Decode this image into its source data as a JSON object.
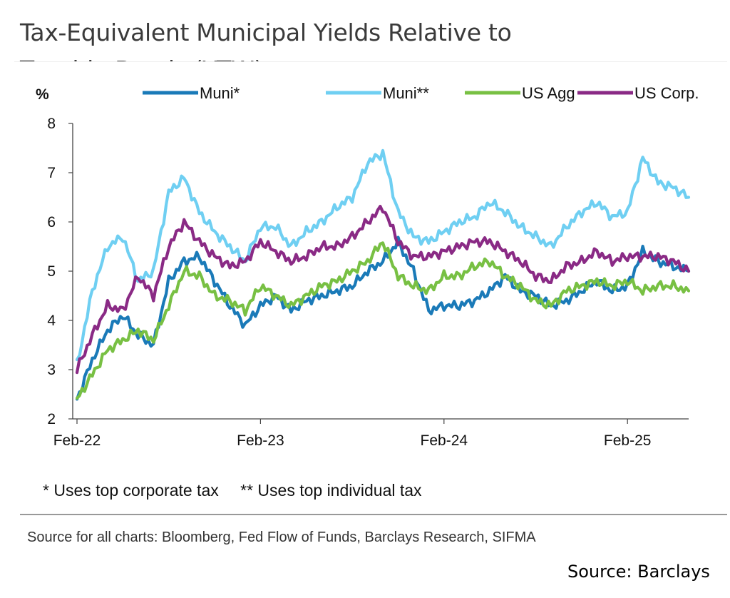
{
  "title": "Tax-Equivalent Municipal Yields Relative to Taxable Bonds (YTW)",
  "notes": [
    "* Uses top corporate tax",
    "** Uses top individual tax"
  ],
  "source_line": "Source for all charts: Bloomberg, Fed Flow of Funds, Barclays Research, SIFMA",
  "source_credit": "Source: Barclays",
  "chart_data": {
    "type": "line",
    "ylabel": "%",
    "ylim": [
      2,
      8
    ],
    "yticks": [
      "2",
      "3",
      "4",
      "5",
      "6",
      "7",
      "8"
    ],
    "xticks": [
      "Feb-22",
      "Feb-23",
      "Feb-24",
      "Feb-25"
    ],
    "x": [
      "Feb-22",
      "Mar-22",
      "Apr-22",
      "May-22",
      "Jun-22",
      "Jul-22",
      "Aug-22",
      "Sep-22",
      "Oct-22",
      "Nov-22",
      "Dec-22",
      "Jan-23",
      "Feb-23",
      "Mar-23",
      "Apr-23",
      "May-23",
      "Jun-23",
      "Jul-23",
      "Aug-23",
      "Sep-23",
      "Oct-23",
      "Nov-23",
      "Dec-23",
      "Jan-24",
      "Feb-24",
      "Mar-24",
      "Apr-24",
      "May-24",
      "Jun-24",
      "Jul-24",
      "Aug-24",
      "Sep-24",
      "Oct-24",
      "Nov-24",
      "Dec-24",
      "Jan-25",
      "Feb-25",
      "Mar-25",
      "Apr-25",
      "May-25",
      "Jun-25"
    ],
    "legend_position": "top",
    "grid": false,
    "series": [
      {
        "name": "Muni*",
        "color": "#1a7ab8",
        "values": [
          2.4,
          3.2,
          3.8,
          4.1,
          3.7,
          3.5,
          4.8,
          5.2,
          5.3,
          4.8,
          4.3,
          3.9,
          4.3,
          4.5,
          4.2,
          4.4,
          4.5,
          4.6,
          4.7,
          5.0,
          5.2,
          5.6,
          5.0,
          4.2,
          4.3,
          4.3,
          4.4,
          4.6,
          4.9,
          4.6,
          4.5,
          4.3,
          4.4,
          4.6,
          4.8,
          4.6,
          4.7,
          5.4,
          5.2,
          5.1,
          5.0
        ]
      },
      {
        "name": "Muni**",
        "color": "#6fcff2",
        "values": [
          3.1,
          4.6,
          5.5,
          5.7,
          4.8,
          5.0,
          6.6,
          6.9,
          6.2,
          5.8,
          5.5,
          5.2,
          5.9,
          5.9,
          5.5,
          5.8,
          6.0,
          6.3,
          6.5,
          7.2,
          7.4,
          6.2,
          5.7,
          5.6,
          5.8,
          6.0,
          6.1,
          6.4,
          6.2,
          5.9,
          5.7,
          5.5,
          5.9,
          6.2,
          6.4,
          6.1,
          6.2,
          7.3,
          6.8,
          6.7,
          6.5
        ]
      },
      {
        "name": "US Agg",
        "color": "#78c043",
        "values": [
          2.4,
          2.9,
          3.4,
          3.6,
          3.8,
          3.6,
          4.3,
          5.0,
          4.9,
          4.5,
          4.4,
          4.2,
          4.7,
          4.5,
          4.3,
          4.5,
          4.7,
          4.8,
          5.0,
          5.2,
          5.6,
          4.9,
          4.7,
          4.6,
          4.9,
          4.9,
          5.1,
          5.2,
          4.9,
          4.7,
          4.4,
          4.3,
          4.6,
          4.7,
          4.8,
          4.7,
          4.8,
          4.6,
          4.7,
          4.7,
          4.6
        ]
      },
      {
        "name": "US Corp.",
        "color": "#8a2a85",
        "values": [
          3.0,
          3.7,
          4.3,
          4.2,
          4.9,
          4.5,
          5.5,
          6.0,
          5.6,
          5.3,
          5.1,
          5.2,
          5.6,
          5.4,
          5.2,
          5.3,
          5.5,
          5.5,
          5.7,
          6.0,
          6.3,
          5.6,
          5.3,
          5.3,
          5.4,
          5.5,
          5.6,
          5.6,
          5.4,
          5.2,
          4.9,
          4.8,
          5.1,
          5.2,
          5.4,
          5.2,
          5.3,
          5.3,
          5.3,
          5.2,
          5.0
        ]
      }
    ]
  }
}
